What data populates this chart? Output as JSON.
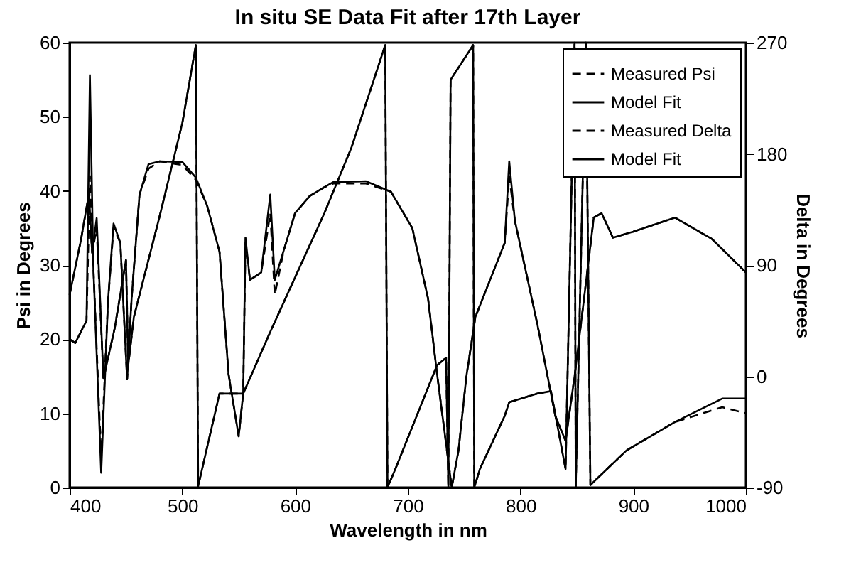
{
  "chart_data": {
    "type": "line",
    "title": "In situ SE Data Fit after 17th Layer",
    "xlabel": "Wavelength in nm",
    "ylabel": "Psi in Degrees",
    "y2label": "Delta in Degrees",
    "xlim": [
      400,
      1000
    ],
    "xticks": [
      400,
      500,
      600,
      700,
      800,
      900,
      1000
    ],
    "ylim": [
      0,
      60
    ],
    "yticks": [
      0,
      10,
      20,
      30,
      40,
      50,
      60
    ],
    "y2lim": [
      -90,
      270
    ],
    "y2ticks": [
      -90,
      0,
      90,
      180,
      270
    ],
    "grid": false,
    "legend": "top right",
    "marker": "none",
    "series": [
      {
        "name": "Measured Psi",
        "color": "#000000",
        "line_style": "dashed",
        "x": [
          400,
          405,
          410,
          415,
          418,
          421,
          428,
          434,
          439,
          445,
          451,
          455,
          462,
          470,
          480,
          500,
          512,
          522,
          533,
          541,
          550,
          554,
          556,
          560,
          570,
          578,
          582,
          590,
          600,
          613,
          626,
          634,
          663,
          685,
          704,
          718,
          726,
          739,
          745,
          752,
          760,
          773,
          786,
          790,
          795,
          815,
          831,
          840,
          848,
          856,
          865,
          872,
          882,
          900,
          937,
          970,
          1000
        ],
        "values": [
          20,
          19.5,
          21,
          22.5,
          42,
          30,
          4,
          25,
          35,
          33,
          14.6,
          25.5,
          39.5,
          43,
          44,
          43.5,
          41.5,
          38,
          31.8,
          15.3,
          6.9,
          12.7,
          33,
          28,
          29,
          37,
          26,
          32,
          37,
          39.3,
          40.5,
          41,
          41,
          39.9,
          35,
          25.5,
          15.3,
          0,
          5,
          15,
          23,
          28,
          33,
          42,
          36,
          22,
          9.6,
          6.3,
          15,
          25,
          36.4,
          37,
          33.7,
          34.5,
          36.4,
          33.5,
          29
        ]
      },
      {
        "name": "Model Fit",
        "color": "#000000",
        "line_style": "solid",
        "x": [
          400,
          405,
          410,
          415,
          418,
          421,
          428,
          434,
          439,
          445,
          451,
          455,
          462,
          470,
          480,
          500,
          512,
          522,
          533,
          541,
          550,
          554,
          556,
          560,
          570,
          578,
          582,
          590,
          600,
          613,
          626,
          634,
          663,
          685,
          704,
          718,
          726,
          739,
          745,
          752,
          760,
          773,
          786,
          790,
          795,
          815,
          831,
          840,
          848,
          856,
          865,
          872,
          882,
          900,
          937,
          970,
          1000
        ],
        "values": [
          20,
          19.5,
          21,
          22.5,
          55.6,
          30,
          2,
          25,
          35.6,
          33,
          14.6,
          25.5,
          39.5,
          43.6,
          44,
          43.9,
          41.8,
          38,
          31.8,
          15.3,
          6.9,
          12.7,
          33.7,
          28,
          29,
          39.5,
          28,
          32,
          37,
          39.3,
          40.5,
          41.2,
          41.3,
          39.9,
          35,
          25.5,
          15.3,
          0,
          5,
          15,
          23,
          28,
          33,
          44,
          36,
          22,
          9.6,
          6.3,
          15,
          25,
          36.4,
          37,
          33.7,
          34.5,
          36.4,
          33.5,
          29
        ]
      },
      {
        "name": "Measured Delta",
        "color": "#000000",
        "line_style": "dashed",
        "axis": "y2",
        "x": [
          400,
          410,
          417,
          420,
          424,
          430,
          440,
          450,
          452,
          457,
          480,
          500,
          512,
          514,
          533,
          554,
          578,
          599,
          626,
          650,
          680,
          682,
          689,
          726,
          734,
          736,
          738,
          758,
          759,
          764,
          786,
          790,
          815,
          827,
          840,
          848,
          849,
          858,
          862,
          894,
          937,
          979,
          1000
        ],
        "values": [
          66,
          110,
          147,
          100,
          120,
          -2,
          39,
          94,
          9,
          48,
          130,
          205,
          268,
          -89,
          -14,
          -14,
          36,
          78,
          132,
          185,
          268,
          -90,
          -75,
          9,
          15,
          -90,
          240,
          268,
          -90,
          -75,
          -32,
          -21,
          -14,
          -12,
          -75,
          270,
          -90,
          270,
          -88,
          -60,
          -37,
          -25,
          -30
        ]
      },
      {
        "name": "Model Fit",
        "color": "#000000",
        "line_style": "solid",
        "axis": "y2",
        "x": [
          400,
          410,
          417,
          420,
          424,
          430,
          440,
          450,
          452,
          457,
          480,
          500,
          512,
          514,
          533,
          554,
          578,
          599,
          626,
          650,
          680,
          682,
          689,
          726,
          734,
          736,
          738,
          758,
          759,
          764,
          786,
          790,
          815,
          827,
          840,
          848,
          849,
          858,
          862,
          894,
          937,
          979,
          1000
        ],
        "values": [
          66,
          110,
          147,
          100,
          128,
          -2,
          39,
          94,
          9,
          48,
          130,
          205,
          268,
          -89,
          -14,
          -14,
          36,
          78,
          132,
          185,
          268,
          -90,
          -75,
          9,
          15,
          -90,
          240,
          268,
          -90,
          -75,
          -32,
          -21,
          -14,
          -12,
          -75,
          270,
          -90,
          270,
          -88,
          -60,
          -37,
          -18,
          -18
        ]
      }
    ]
  }
}
